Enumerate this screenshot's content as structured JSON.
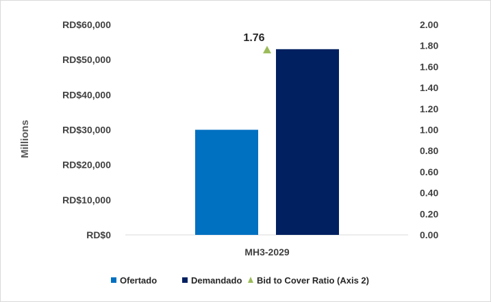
{
  "chart_data": {
    "type": "bar",
    "categories": [
      "MH3-2029"
    ],
    "series": [
      {
        "name": "Ofertado",
        "values": [
          30000
        ],
        "color": "#0070c0",
        "axis": "primary",
        "kind": "bar"
      },
      {
        "name": "Demandado",
        "values": [
          53000
        ],
        "color": "#002060",
        "axis": "primary",
        "kind": "bar"
      },
      {
        "name": "Bid to Cover Ratio (Axis 2)",
        "values": [
          1.76
        ],
        "color": "#9bbb59",
        "axis": "secondary",
        "kind": "marker-triangle"
      }
    ],
    "ylabel": "Millions",
    "ylim": [
      0,
      60000
    ],
    "y_ticks": [
      "RD$0",
      "RD$10,000",
      "RD$20,000",
      "RD$30,000",
      "RD$40,000",
      "RD$50,000",
      "RD$60,000"
    ],
    "y2lim": [
      0,
      2.0
    ],
    "y2_ticks": [
      "0.00",
      "0.20",
      "0.40",
      "0.60",
      "0.80",
      "1.00",
      "1.20",
      "1.40",
      "1.60",
      "1.80",
      "2.00"
    ],
    "data_labels": [
      "1.76"
    ],
    "legend_position": "bottom",
    "grid": false
  }
}
